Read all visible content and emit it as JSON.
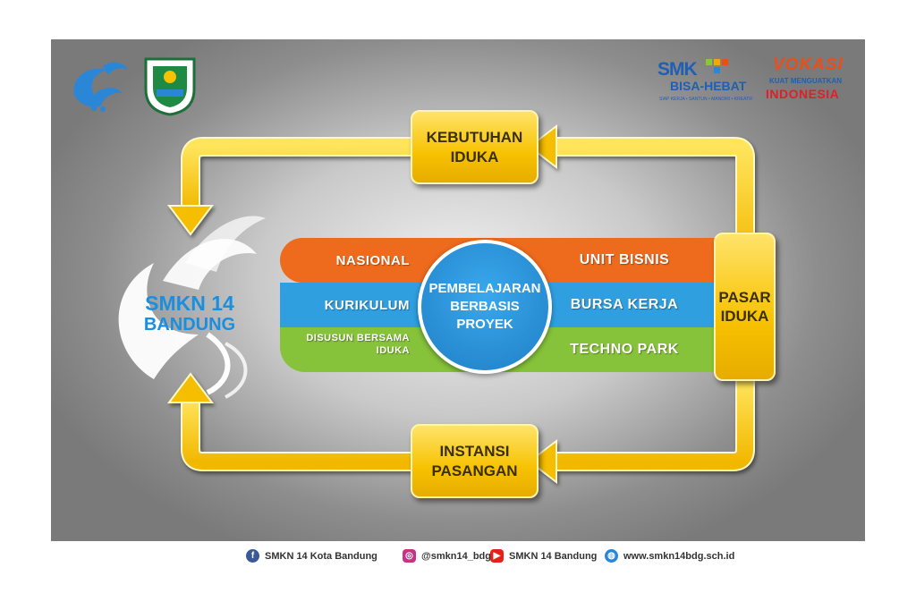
{
  "diagram": {
    "top_box": {
      "line1": "KEBUTUHAN",
      "line2": "IDUKA"
    },
    "bottom_box": {
      "line1": "INSTANSI",
      "line2": "PASANGAN"
    },
    "right_box": {
      "line1": "PASAR",
      "line2": "IDUKA"
    },
    "center": {
      "line1": "PEMBELAJARAN",
      "line2": "BERBASIS",
      "line3": "PROYEK"
    },
    "left_labels": {
      "row1": "NASIONAL",
      "row2": "KURIKULUM",
      "row3_line1": "DISUSUN BERSAMA",
      "row3_line2": "IDUKA"
    },
    "right_labels": {
      "row1": "UNIT BISNIS",
      "row2": "BURSA KERJA",
      "row3": "TECHNO PARK"
    },
    "school": {
      "line1": "SMKN 14",
      "line2": "BANDUNG"
    }
  },
  "logos": {
    "smk": {
      "line1": "SMK",
      "line2": "BISA-HEBAT",
      "tagline": "SIAP KERJA • SANTUN • MANDIRI • KREATIF"
    },
    "vokasi": {
      "line1": "VOKASI",
      "line2": "KUAT MENGUATKAN",
      "line3": "INDONESIA"
    }
  },
  "footer": {
    "facebook": "SMKN 14 Kota Bandung",
    "instagram": "@smkn14_bdg",
    "youtube": "SMKN 14 Bandung",
    "website": "www.smkn14bdg.sch.id"
  },
  "colors": {
    "orange": "#ee6a1c",
    "blue": "#2f9fe0",
    "green": "#86c23a",
    "yellow": "#f7c200"
  }
}
